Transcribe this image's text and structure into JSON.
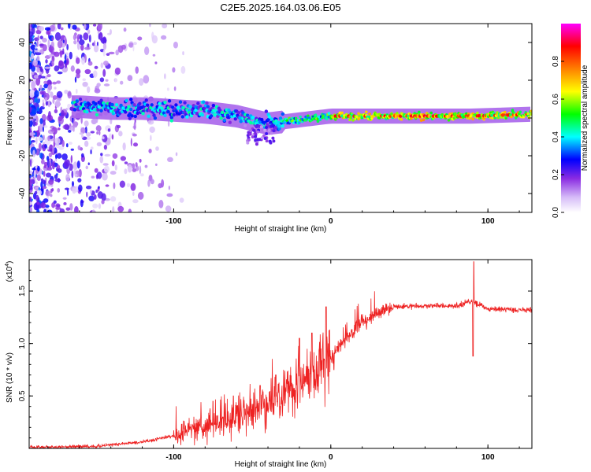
{
  "title": "C2E5.2025.164.03.06.E05",
  "chart_data": [
    {
      "type": "heatmap",
      "name": "spectrogram",
      "xlabel": "Height of straight line (km)",
      "ylabel": "Frequency (Hz)",
      "xlim": [
        -192,
        128
      ],
      "ylim": [
        -50,
        50
      ],
      "xticks": [
        -100,
        0,
        100
      ],
      "yticks": [
        -40,
        -20,
        0,
        20,
        40
      ],
      "ridge": [
        [
          -160,
          6
        ],
        [
          -140,
          5
        ],
        [
          -120,
          5
        ],
        [
          -100,
          4
        ],
        [
          -80,
          3
        ],
        [
          -60,
          1
        ],
        [
          -50,
          -1
        ],
        [
          -40,
          -3
        ],
        [
          -30,
          -2
        ],
        [
          -20,
          -1
        ],
        [
          -10,
          0
        ],
        [
          0,
          1
        ],
        [
          20,
          1
        ],
        [
          50,
          1
        ],
        [
          90,
          1
        ],
        [
          128,
          2
        ]
      ],
      "colorbar": {
        "label": "Normalized spectral amplitude",
        "ticks": [
          "0.0",
          "0.2",
          "0.4",
          "0.6",
          "0.8"
        ],
        "range": [
          0,
          1
        ],
        "colors": [
          "#ffffff",
          "#d0b4f8",
          "#8a2be2",
          "#0000ff",
          "#00ffff",
          "#00ff00",
          "#ffff00",
          "#ff8000",
          "#ff0000",
          "#ff00ff"
        ]
      }
    },
    {
      "type": "line",
      "name": "snr",
      "xlabel": "Height of straight line (km)",
      "ylabel": "SNR (10 * v/v)",
      "scale_label": "(x10",
      "scale_exp": "4",
      "xlim": [
        -192,
        128
      ],
      "ylim": [
        0,
        1.8
      ],
      "xticks": [
        -100,
        0,
        100
      ],
      "yticks": [
        0.5,
        1.0,
        1.5
      ],
      "ytick_labels": [
        "0.5",
        "1.0",
        "1.5"
      ],
      "color": "#ee2222",
      "envelope": [
        [
          -192,
          0.01
        ],
        [
          -150,
          0.02
        ],
        [
          -120,
          0.06
        ],
        [
          -100,
          0.12
        ],
        [
          -80,
          0.2
        ],
        [
          -60,
          0.3
        ],
        [
          -40,
          0.42
        ],
        [
          -20,
          0.62
        ],
        [
          -10,
          0.72
        ],
        [
          0,
          0.88
        ],
        [
          10,
          1.05
        ],
        [
          20,
          1.2
        ],
        [
          30,
          1.3
        ],
        [
          40,
          1.35
        ],
        [
          60,
          1.36
        ],
        [
          80,
          1.36
        ],
        [
          90,
          1.4
        ],
        [
          100,
          1.33
        ],
        [
          128,
          1.32
        ]
      ],
      "spikes": [
        [
          -75,
          0.45
        ],
        [
          -62,
          0.5
        ],
        [
          -45,
          0.6
        ],
        [
          -35,
          0.7
        ],
        [
          -20,
          1.05
        ],
        [
          -12,
          1.1
        ],
        [
          -3,
          1.35
        ],
        [
          2,
          0.75
        ],
        [
          91,
          1.78
        ],
        [
          90.5,
          0.88
        ]
      ]
    }
  ]
}
